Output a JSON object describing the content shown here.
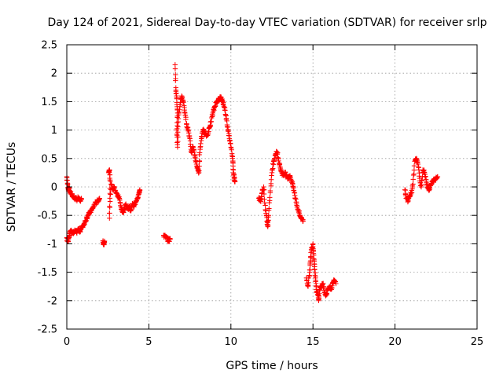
{
  "chart_data": {
    "type": "scatter",
    "title": "Day 124 of 2021, Sidereal Day-to-day VTEC variation (SDTVAR) for receiver srlp",
    "xlabel": "GPS time / hours",
    "ylabel": "SDTVAR / TECUs",
    "xlim": [
      0,
      25
    ],
    "ylim": [
      -2.5,
      2.5
    ],
    "xticks": [
      0,
      5,
      10,
      15,
      20,
      25
    ],
    "yticks": [
      -2.5,
      -2,
      -1.5,
      -1,
      -0.5,
      0,
      0.5,
      1,
      1.5,
      2,
      2.5
    ],
    "grid": true,
    "marker": "+",
    "color": "#ff0000",
    "series": [
      {
        "name": "SDTVAR",
        "segments": [
          [
            [
              0.0,
              0.18
            ],
            [
              0.05,
              0.05
            ],
            [
              0.1,
              -0.05
            ],
            [
              0.15,
              0.0
            ],
            [
              0.2,
              -0.1
            ],
            [
              0.3,
              -0.12
            ],
            [
              0.4,
              -0.18
            ],
            [
              0.5,
              -0.2
            ],
            [
              0.6,
              -0.22
            ],
            [
              0.7,
              -0.2
            ],
            [
              0.8,
              -0.24
            ],
            [
              0.9,
              -0.22
            ]
          ],
          [
            [
              0.0,
              -0.9
            ],
            [
              0.08,
              -0.95
            ],
            [
              0.15,
              -0.85
            ],
            [
              0.2,
              -0.8
            ],
            [
              0.3,
              -0.78
            ],
            [
              0.4,
              -0.82
            ],
            [
              0.5,
              -0.78
            ],
            [
              0.6,
              -0.8
            ],
            [
              0.7,
              -0.74
            ],
            [
              0.8,
              -0.78
            ],
            [
              0.9,
              -0.72
            ],
            [
              1.0,
              -0.68
            ],
            [
              1.1,
              -0.62
            ],
            [
              1.2,
              -0.55
            ],
            [
              1.3,
              -0.5
            ],
            [
              1.4,
              -0.45
            ],
            [
              1.5,
              -0.42
            ],
            [
              1.6,
              -0.36
            ],
            [
              1.7,
              -0.3
            ],
            [
              1.8,
              -0.28
            ],
            [
              1.9,
              -0.24
            ],
            [
              2.0,
              -0.2
            ]
          ],
          [
            [
              2.2,
              -0.95
            ],
            [
              2.25,
              -1.0
            ],
            [
              2.3,
              -0.98
            ]
          ],
          [
            [
              2.55,
              0.25
            ],
            [
              2.6,
              0.3
            ],
            [
              2.65,
              0.1
            ],
            [
              2.6,
              -0.55
            ],
            [
              2.7,
              0.05
            ],
            [
              2.8,
              -0.05
            ],
            [
              2.9,
              0.0
            ],
            [
              3.0,
              -0.1
            ],
            [
              3.1,
              -0.15
            ],
            [
              3.2,
              -0.2
            ],
            [
              3.3,
              -0.35
            ],
            [
              3.4,
              -0.45
            ],
            [
              3.5,
              -0.4
            ],
            [
              3.6,
              -0.3
            ],
            [
              3.7,
              -0.38
            ],
            [
              3.8,
              -0.35
            ],
            [
              3.9,
              -0.42
            ],
            [
              4.0,
              -0.3
            ],
            [
              4.1,
              -0.35
            ],
            [
              4.2,
              -0.25
            ],
            [
              4.3,
              -0.2
            ],
            [
              4.4,
              -0.12
            ],
            [
              4.45,
              -0.05
            ]
          ],
          [
            [
              5.9,
              -0.85
            ],
            [
              6.0,
              -0.88
            ],
            [
              6.1,
              -0.9
            ],
            [
              6.2,
              -0.95
            ],
            [
              6.3,
              -0.92
            ]
          ],
          [
            [
              6.6,
              2.15
            ],
            [
              6.65,
              1.7
            ],
            [
              6.7,
              1.55
            ],
            [
              6.75,
              1.3
            ],
            [
              6.7,
              1.0
            ],
            [
              6.75,
              0.7
            ],
            [
              6.8,
              1.2
            ],
            [
              6.9,
              1.45
            ],
            [
              7.0,
              1.6
            ],
            [
              7.1,
              1.5
            ],
            [
              7.2,
              1.3
            ],
            [
              7.3,
              1.1
            ],
            [
              7.4,
              1.0
            ],
            [
              7.5,
              0.85
            ],
            [
              7.6,
              0.6
            ],
            [
              7.7,
              0.7
            ],
            [
              7.8,
              0.55
            ],
            [
              7.9,
              0.4
            ],
            [
              8.0,
              0.3
            ],
            [
              8.05,
              0.25
            ],
            [
              8.1,
              0.6
            ],
            [
              8.2,
              0.85
            ],
            [
              8.3,
              1.0
            ],
            [
              8.4,
              0.95
            ],
            [
              8.5,
              0.9
            ],
            [
              8.6,
              0.95
            ],
            [
              8.7,
              1.05
            ],
            [
              8.8,
              1.15
            ],
            [
              8.9,
              1.3
            ],
            [
              9.0,
              1.4
            ],
            [
              9.1,
              1.48
            ],
            [
              9.2,
              1.52
            ],
            [
              9.3,
              1.55
            ],
            [
              9.4,
              1.57
            ],
            [
              9.5,
              1.5
            ],
            [
              9.6,
              1.4
            ],
            [
              9.7,
              1.25
            ],
            [
              9.8,
              1.05
            ],
            [
              9.9,
              0.9
            ],
            [
              10.0,
              0.7
            ],
            [
              10.1,
              0.5
            ],
            [
              10.15,
              0.3
            ],
            [
              10.2,
              0.15
            ],
            [
              10.25,
              0.1
            ]
          ],
          [
            [
              11.7,
              -0.2
            ],
            [
              11.8,
              -0.25
            ],
            [
              11.9,
              -0.1
            ],
            [
              12.0,
              0.0
            ],
            [
              12.1,
              -0.4
            ],
            [
              12.2,
              -0.6
            ],
            [
              12.25,
              -0.7
            ],
            [
              12.3,
              -0.5
            ],
            [
              12.4,
              -0.1
            ],
            [
              12.5,
              0.25
            ],
            [
              12.6,
              0.45
            ],
            [
              12.7,
              0.55
            ],
            [
              12.8,
              0.62
            ],
            [
              12.9,
              0.5
            ],
            [
              13.0,
              0.35
            ],
            [
              13.1,
              0.25
            ],
            [
              13.2,
              0.2
            ],
            [
              13.3,
              0.25
            ],
            [
              13.4,
              0.2
            ],
            [
              13.5,
              0.15
            ],
            [
              13.6,
              0.2
            ],
            [
              13.7,
              0.1
            ],
            [
              13.8,
              0.0
            ],
            [
              13.9,
              -0.15
            ],
            [
              14.0,
              -0.3
            ],
            [
              14.1,
              -0.4
            ],
            [
              14.2,
              -0.5
            ],
            [
              14.3,
              -0.55
            ],
            [
              14.4,
              -0.6
            ]
          ],
          [
            [
              14.6,
              -1.6
            ],
            [
              14.7,
              -1.75
            ],
            [
              14.8,
              -1.5
            ],
            [
              14.85,
              -1.3
            ],
            [
              14.9,
              -1.1
            ],
            [
              15.0,
              -1.0
            ],
            [
              15.05,
              -1.2
            ],
            [
              15.1,
              -1.4
            ],
            [
              15.15,
              -1.6
            ],
            [
              15.2,
              -1.8
            ],
            [
              15.3,
              -1.9
            ],
            [
              15.35,
              -2.0
            ],
            [
              15.4,
              -1.8
            ],
            [
              15.5,
              -1.75
            ],
            [
              15.6,
              -1.7
            ],
            [
              15.7,
              -1.85
            ],
            [
              15.8,
              -1.9
            ],
            [
              15.9,
              -1.8
            ],
            [
              16.0,
              -1.75
            ],
            [
              16.1,
              -1.8
            ],
            [
              16.2,
              -1.7
            ],
            [
              16.3,
              -1.65
            ],
            [
              16.4,
              -1.7
            ]
          ],
          [
            [
              20.6,
              -0.05
            ],
            [
              20.7,
              -0.2
            ],
            [
              20.8,
              -0.25
            ],
            [
              20.9,
              -0.15
            ],
            [
              21.0,
              -0.1
            ],
            [
              21.1,
              0.05
            ],
            [
              21.2,
              0.45
            ],
            [
              21.3,
              0.5
            ],
            [
              21.4,
              0.4
            ],
            [
              21.5,
              0.15
            ],
            [
              21.6,
              0.0
            ],
            [
              21.7,
              0.3
            ],
            [
              21.8,
              0.25
            ],
            [
              21.9,
              0.1
            ],
            [
              22.0,
              0.0
            ],
            [
              22.1,
              -0.05
            ],
            [
              22.2,
              0.05
            ],
            [
              22.3,
              0.1
            ],
            [
              22.4,
              0.12
            ],
            [
              22.5,
              0.15
            ],
            [
              22.6,
              0.18
            ]
          ]
        ]
      }
    ]
  }
}
